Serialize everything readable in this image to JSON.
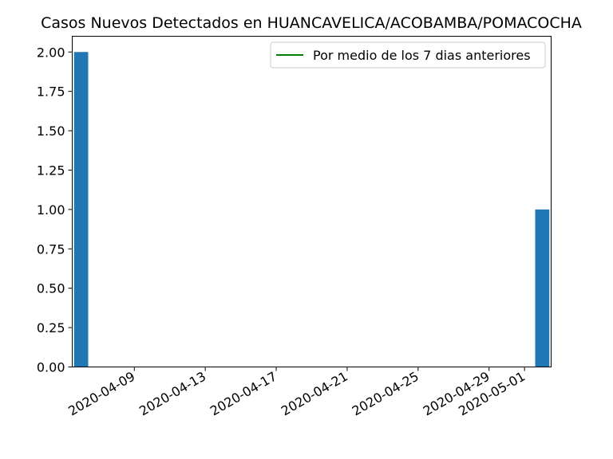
{
  "chart_data": {
    "type": "bar",
    "title": "Casos Nuevos Detectados en HUANCAVELICA/ACOBAMBA/POMACOCHA",
    "xlabel": "",
    "ylabel": "",
    "x_range": [
      "2020-04-06",
      "2020-05-02"
    ],
    "ylim": [
      0,
      2.1
    ],
    "yticks": [
      0.0,
      0.25,
      0.5,
      0.75,
      1.0,
      1.25,
      1.5,
      1.75,
      2.0
    ],
    "ytick_labels": [
      "0.00",
      "0.25",
      "0.50",
      "0.75",
      "1.00",
      "1.25",
      "1.50",
      "1.75",
      "2.00"
    ],
    "xticks": [
      "2020-04-09",
      "2020-04-13",
      "2020-04-17",
      "2020-04-21",
      "2020-04-25",
      "2020-04-29",
      "2020-05-01"
    ],
    "bars": [
      {
        "date": "2020-04-06",
        "value": 2
      },
      {
        "date": "2020-05-02",
        "value": 1
      }
    ],
    "series": [
      {
        "name": "Por medio de los 7 dias anteriores",
        "type": "line",
        "color": "#008000",
        "points": []
      }
    ],
    "bar_color": "#1f77b4",
    "grid": false,
    "legend": "top-right"
  }
}
